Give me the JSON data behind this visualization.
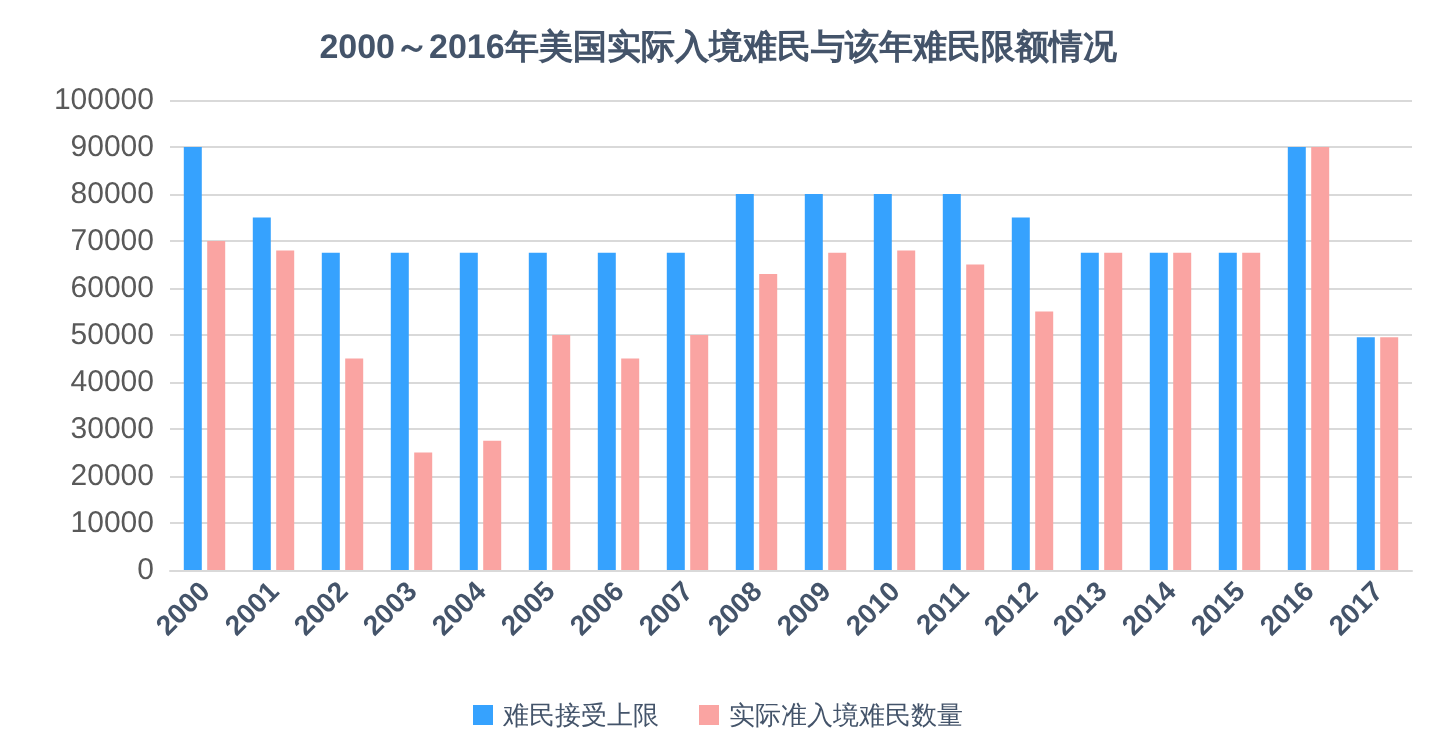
{
  "chart_data": {
    "type": "bar",
    "title": "2000～2016年美国实际入境难民与该年难民限额情况",
    "categories": [
      "2000",
      "2001",
      "2002",
      "2003",
      "2004",
      "2005",
      "2006",
      "2007",
      "2008",
      "2009",
      "2010",
      "2011",
      "2012",
      "2013",
      "2014",
      "2015",
      "2016",
      "2017"
    ],
    "series": [
      {
        "name": "难民接受上限",
        "color": "#36a2fe",
        "values": [
          90000,
          75000,
          67500,
          67500,
          67500,
          67500,
          67500,
          67500,
          80000,
          80000,
          80000,
          80000,
          75000,
          67500,
          67500,
          67500,
          90000,
          49500
        ]
      },
      {
        "name": "实际准入境难民数量",
        "color": "#faa4a2",
        "values": [
          70000,
          68000,
          45000,
          25000,
          27500,
          50000,
          45000,
          50000,
          63000,
          67500,
          68000,
          65000,
          55000,
          67500,
          67500,
          67500,
          90000,
          49500
        ]
      }
    ],
    "ylim": [
      0,
      100000
    ],
    "yticks": [
      0,
      10000,
      20000,
      30000,
      40000,
      50000,
      60000,
      70000,
      80000,
      90000,
      100000
    ],
    "grid": "y",
    "legend": "bottom"
  }
}
